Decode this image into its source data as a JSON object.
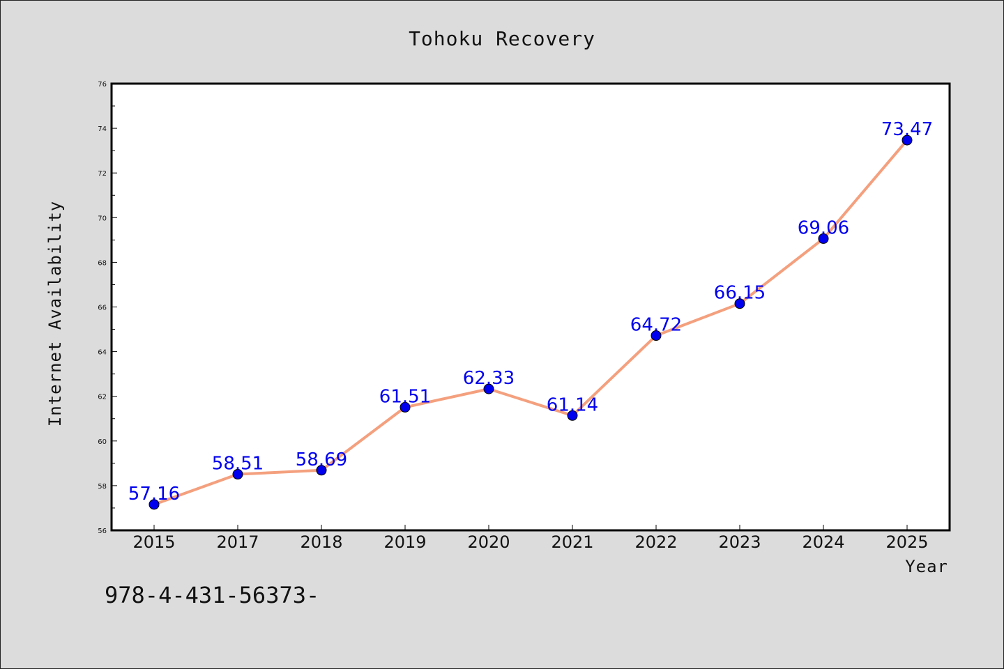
{
  "chart_data": {
    "type": "line",
    "title": "Tohoku Recovery",
    "xlabel": "Year",
    "ylabel": "Internet Availability",
    "categories": [
      "2015",
      "2017",
      "2018",
      "2019",
      "2020",
      "2021",
      "2022",
      "2023",
      "2024",
      "2025"
    ],
    "series": [
      {
        "values": [
          57.16,
          58.51,
          58.69,
          61.51,
          62.33,
          61.14,
          64.72,
          66.15,
          69.06,
          73.47
        ],
        "data_labels": [
          "57.16",
          "58.51",
          "58.69",
          "61.51",
          "62.33",
          "61.14",
          "64.72",
          "66.15",
          "69.06",
          "73.47"
        ],
        "line_color": "#f4a07e",
        "marker_color": "#0000ee"
      }
    ],
    "ylim": [
      56,
      76
    ],
    "yticks": [
      56,
      58,
      60,
      62,
      64,
      66,
      68,
      70,
      72,
      74,
      76
    ],
    "grid": false,
    "legend": "none"
  },
  "footer_text": "978-4-431-56373-"
}
